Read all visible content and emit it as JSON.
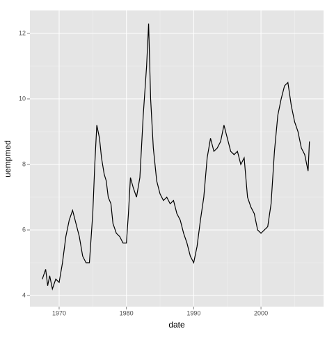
{
  "chart_data": {
    "type": "line",
    "x_label": "date",
    "y_label": "uempmed",
    "x": [
      1967.5,
      1968,
      1968.3,
      1968.6,
      1969,
      1969.5,
      1970,
      1970.5,
      1971,
      1971.5,
      1972,
      1972.5,
      1973,
      1973.5,
      1974,
      1974.5,
      1975,
      1975.3,
      1975.6,
      1976,
      1976.3,
      1976.7,
      1977,
      1977.3,
      1977.7,
      1978,
      1978.5,
      1979,
      1979.5,
      1980,
      1980.3,
      1980.6,
      1981,
      1981.5,
      1982,
      1982.5,
      1983,
      1983.3,
      1983.6,
      1984,
      1984.5,
      1985,
      1985.5,
      1986,
      1986.5,
      1987,
      1987.5,
      1988,
      1988.5,
      1989,
      1989.5,
      1990,
      1990.5,
      1991,
      1991.5,
      1992,
      1992.5,
      1993,
      1993.5,
      1994,
      1994.5,
      1995,
      1995.5,
      1996,
      1996.5,
      1997,
      1997.5,
      1998,
      1998.5,
      1999,
      1999.5,
      2000,
      2000.5,
      2001,
      2001.5,
      2002,
      2002.5,
      2003,
      2003.5,
      2004,
      2004.5,
      2005,
      2005.5,
      2006,
      2006.5,
      2007,
      2007.2
    ],
    "series": [
      {
        "name": "uempmed",
        "color": "#000000",
        "values": [
          4.5,
          4.8,
          4.3,
          4.6,
          4.2,
          4.5,
          4.4,
          5.0,
          5.8,
          6.3,
          6.6,
          6.2,
          5.8,
          5.2,
          5.0,
          5.0,
          6.5,
          8.0,
          9.2,
          8.8,
          8.2,
          7.7,
          7.5,
          7.0,
          6.8,
          6.2,
          5.9,
          5.8,
          5.6,
          5.6,
          6.5,
          7.6,
          7.3,
          7.0,
          7.6,
          9.5,
          11.0,
          12.3,
          10.0,
          8.5,
          7.5,
          7.1,
          6.9,
          7.0,
          6.8,
          6.9,
          6.5,
          6.3,
          5.9,
          5.6,
          5.2,
          5.0,
          5.5,
          6.3,
          7.0,
          8.2,
          8.8,
          8.4,
          8.5,
          8.7,
          9.2,
          8.8,
          8.4,
          8.3,
          8.4,
          8.0,
          8.2,
          7.0,
          6.7,
          6.5,
          6.0,
          5.9,
          6.0,
          6.1,
          6.8,
          8.4,
          9.5,
          10.0,
          10.4,
          10.5,
          9.8,
          9.3,
          9.0,
          8.5,
          8.3,
          7.8,
          8.7
        ]
      }
    ],
    "xlim": [
      1965.66,
      2009.3
    ],
    "xticks": [
      1970,
      1980,
      1990,
      2000
    ],
    "ylim": [
      3.66,
      12.7
    ],
    "yticks": [
      4,
      6,
      8,
      10,
      12
    ],
    "grid": true
  }
}
